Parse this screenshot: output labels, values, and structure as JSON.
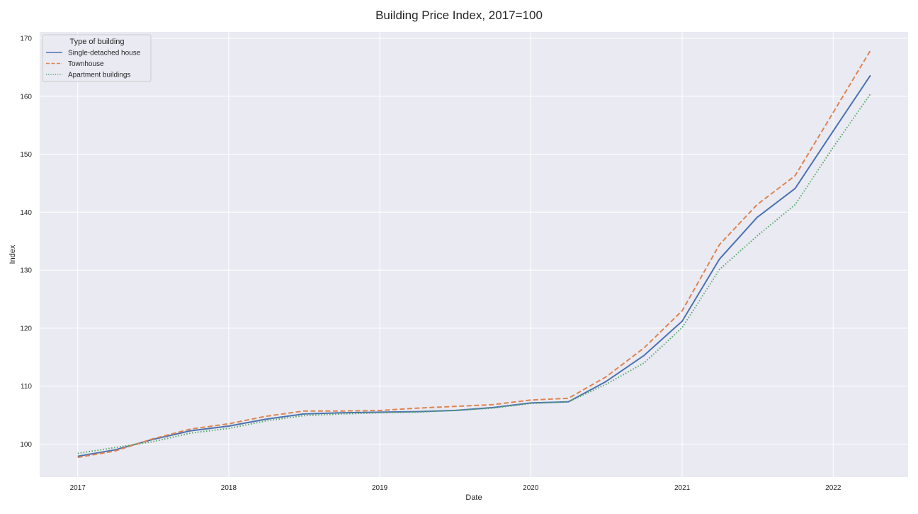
{
  "chart_data": {
    "type": "line",
    "title": "Building Price Index, 2017=100",
    "xlabel": "Date",
    "ylabel": "Index",
    "x": [
      "2017-01-01",
      "2017-04-01",
      "2017-07-01",
      "2017-10-01",
      "2018-01-01",
      "2018-04-01",
      "2018-07-01",
      "2018-10-01",
      "2019-01-01",
      "2019-04-01",
      "2019-07-01",
      "2019-10-01",
      "2020-01-01",
      "2020-04-01",
      "2020-07-01",
      "2020-10-01",
      "2021-01-01",
      "2021-04-01",
      "2021-07-01",
      "2021-10-01",
      "2022-01-01",
      "2022-04-01"
    ],
    "xlim": [
      "2016-10-01",
      "2022-07-01"
    ],
    "x_ticks": [
      "2017-01-01",
      "2018-01-01",
      "2019-01-01",
      "2020-01-01",
      "2021-01-01",
      "2022-01-01"
    ],
    "x_tick_labels": [
      "2017",
      "2018",
      "2019",
      "2020",
      "2021",
      "2022"
    ],
    "ylim": [
      94.3,
      171.1
    ],
    "y_ticks": [
      100,
      110,
      120,
      130,
      140,
      150,
      160,
      170
    ],
    "y_tick_labels": [
      "100",
      "110",
      "120",
      "130",
      "140",
      "150",
      "160",
      "170"
    ],
    "grid": true,
    "legend": {
      "title": "Type of building",
      "placement": "upper-left"
    },
    "series": [
      {
        "name": "Single-detached house",
        "color": "#4c72b0",
        "dash": "solid",
        "values": [
          97.9,
          99.0,
          100.8,
          102.3,
          103.1,
          104.3,
          105.2,
          105.4,
          105.5,
          105.6,
          105.8,
          106.3,
          107.1,
          107.3,
          110.8,
          115.3,
          121.2,
          131.9,
          139.1,
          144.1,
          154.0,
          163.6
        ]
      },
      {
        "name": "Townhouse",
        "color": "#dd8452",
        "dash": "dashed",
        "values": [
          97.7,
          98.8,
          100.9,
          102.6,
          103.5,
          104.8,
          105.7,
          105.7,
          105.8,
          106.2,
          106.5,
          106.8,
          107.6,
          107.9,
          111.6,
          116.6,
          123.0,
          134.4,
          141.3,
          146.3,
          157.2,
          167.9
        ]
      },
      {
        "name": "Apartment buildings",
        "color": "#55a868",
        "dash": "dotted",
        "values": [
          98.4,
          99.4,
          100.4,
          101.9,
          102.7,
          104.0,
          104.9,
          105.2,
          105.4,
          105.5,
          105.8,
          106.2,
          107.0,
          107.3,
          110.3,
          114.0,
          120.1,
          130.1,
          135.9,
          141.3,
          151.2,
          160.4
        ]
      }
    ]
  }
}
